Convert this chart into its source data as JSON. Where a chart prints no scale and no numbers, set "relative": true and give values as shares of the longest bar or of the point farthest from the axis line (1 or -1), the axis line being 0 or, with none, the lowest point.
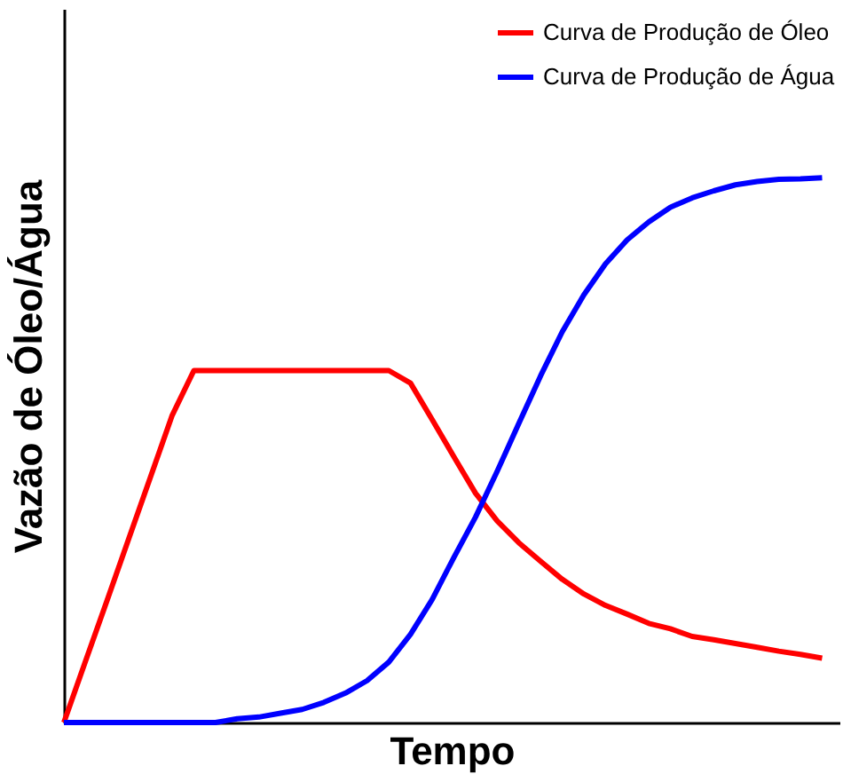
{
  "chart_data": {
    "type": "line",
    "relative": true,
    "xlabel": "Tempo",
    "ylabel": "Vazão de Óleo/Água",
    "grid": false,
    "legend": "top right",
    "tick_labels": false,
    "line_style": "solid",
    "marker": "none",
    "categories": [
      null,
      null,
      null,
      null,
      null,
      null,
      null,
      null,
      null,
      null,
      null,
      null,
      null,
      null,
      null,
      null,
      null,
      null,
      null,
      null,
      null,
      null,
      null,
      null,
      null,
      null,
      null,
      null,
      null,
      null,
      null,
      null,
      null,
      null,
      null,
      null
    ],
    "series": [
      {
        "name": "Curva de Produção de Óleo",
        "color": "#ff0000",
        "values": [
          0,
          0.113,
          0.225,
          0.338,
          0.451,
          0.564,
          0.646,
          0.646,
          0.646,
          0.646,
          0.646,
          0.646,
          0.646,
          0.646,
          0.646,
          0.646,
          0.623,
          0.556,
          0.488,
          0.421,
          0.37,
          0.33,
          0.296,
          0.263,
          0.236,
          0.215,
          0.199,
          0.182,
          0.172,
          0.158,
          0.152,
          0.145,
          0.138,
          0.131,
          0.125,
          0.118
        ]
      },
      {
        "name": "Curva de Produção de Água",
        "color": "#0000ff",
        "values": [
          0,
          0,
          0,
          0,
          0,
          0,
          0,
          0,
          0.007,
          0.01,
          0.017,
          0.024,
          0.037,
          0.054,
          0.077,
          0.111,
          0.162,
          0.226,
          0.303,
          0.377,
          0.461,
          0.549,
          0.636,
          0.717,
          0.785,
          0.842,
          0.886,
          0.919,
          0.946,
          0.963,
          0.976,
          0.987,
          0.993,
          0.997,
          0.998,
          1
        ]
      }
    ]
  }
}
